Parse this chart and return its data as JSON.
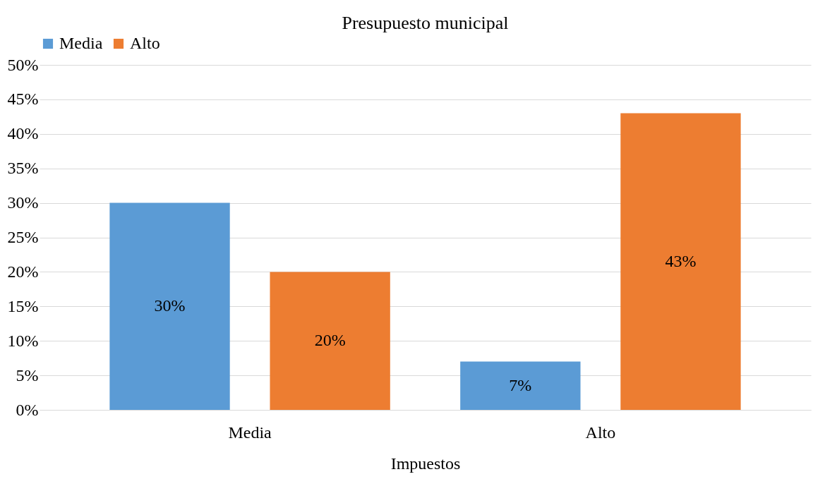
{
  "chart_data": {
    "type": "bar",
    "title": "Presupuesto municipal",
    "xlabel": "Impuestos",
    "categories": [
      "Media",
      "Alto"
    ],
    "series": [
      {
        "name": "Media",
        "color": "#5b9bd5",
        "values": [
          30,
          7
        ],
        "value_labels": [
          "30%",
          "7%"
        ]
      },
      {
        "name": "Alto",
        "color": "#ed7d31",
        "values": [
          20,
          43
        ],
        "value_labels": [
          "20%",
          "43%"
        ]
      }
    ],
    "ylim": [
      0,
      50
    ],
    "yticks": [
      {
        "value": 0,
        "label": "0%"
      },
      {
        "value": 5,
        "label": "5%"
      },
      {
        "value": 10,
        "label": "10%"
      },
      {
        "value": 15,
        "label": "15%"
      },
      {
        "value": 20,
        "label": "20%"
      },
      {
        "value": 25,
        "label": "25%"
      },
      {
        "value": 30,
        "label": "30%"
      },
      {
        "value": 35,
        "label": "35%"
      },
      {
        "value": 40,
        "label": "40%"
      },
      {
        "value": 45,
        "label": "45%"
      },
      {
        "value": 50,
        "label": "50%"
      }
    ],
    "grid": "y",
    "legend": "top"
  }
}
